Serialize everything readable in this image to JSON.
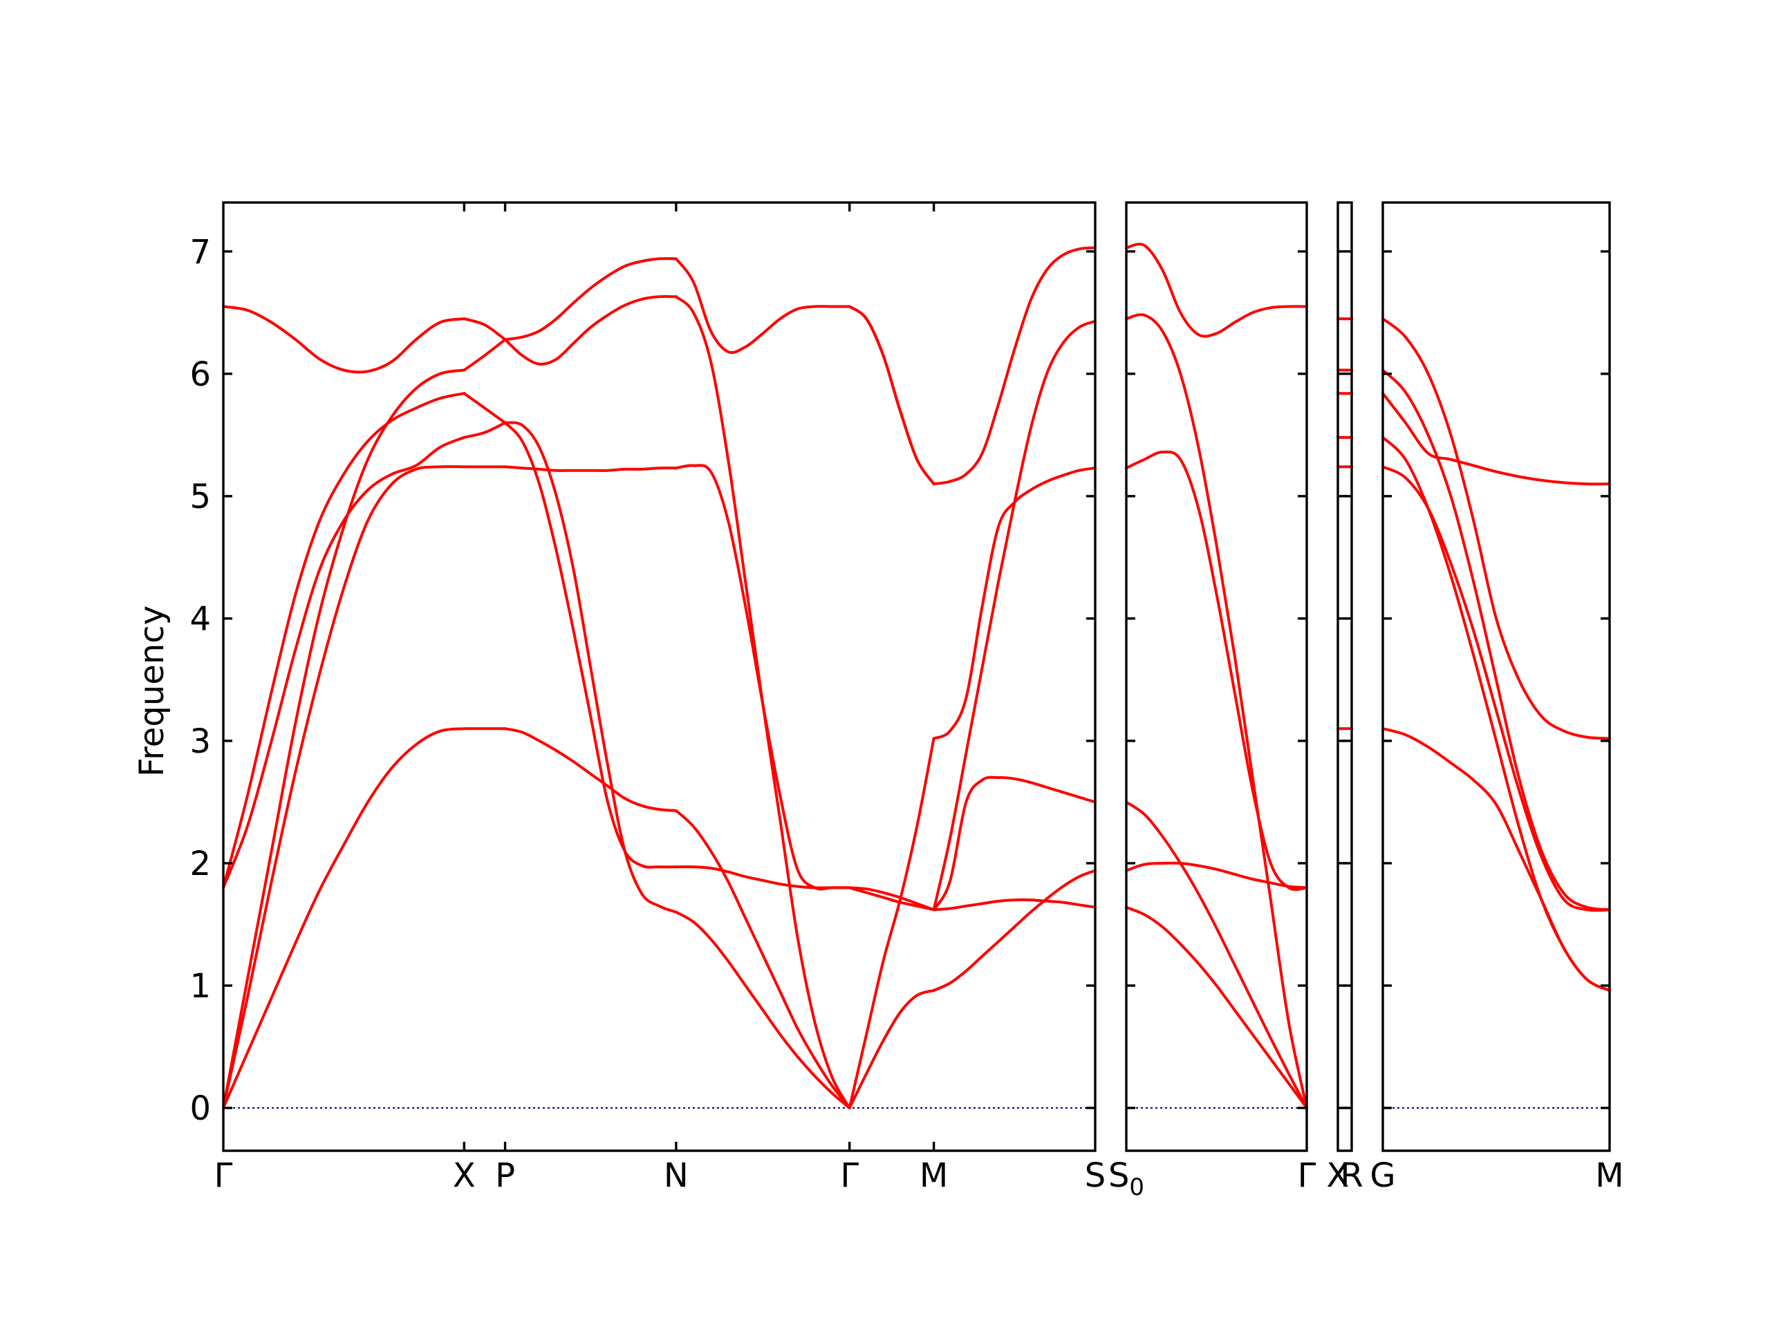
{
  "chart_data": {
    "type": "line",
    "title": "",
    "ylabel": "Frequency",
    "ylim": [
      -0.35,
      7.4
    ],
    "yticks": [
      "0",
      "1",
      "2",
      "3",
      "4",
      "5",
      "6",
      "7"
    ],
    "band_color": "#ff0000",
    "zero_line_color": "#00008b",
    "grid": false,
    "panels": [
      {
        "xticks": [
          "Γ",
          "X",
          "P",
          "N",
          "Γ",
          "M",
          "S"
        ],
        "segments": [
          {
            "from": "Γ",
            "to": "X",
            "x": [
              0,
              0.1,
              0.2,
              0.3,
              0.4,
              0.5,
              0.6,
              0.7,
              0.8,
              0.9,
              1.0
            ],
            "bands": [
              [
                0,
                0.45,
                0.9,
                1.35,
                1.78,
                2.15,
                2.5,
                2.78,
                2.97,
                3.08,
                3.1
              ],
              [
                0,
                0.9,
                1.85,
                2.75,
                3.55,
                4.25,
                4.8,
                5.1,
                5.22,
                5.24,
                5.24
              ],
              [
                1.8,
                2.3,
                3.0,
                3.75,
                4.4,
                4.8,
                5.05,
                5.18,
                5.25,
                5.4,
                5.48
              ],
              [
                1.8,
                2.55,
                3.4,
                4.2,
                4.8,
                5.18,
                5.45,
                5.62,
                5.72,
                5.8,
                5.84
              ],
              [
                0,
                1.05,
                2.1,
                3.15,
                4.05,
                4.75,
                5.3,
                5.65,
                5.88,
                6.0,
                6.03
              ],
              [
                6.55,
                6.52,
                6.42,
                6.28,
                6.12,
                6.03,
                6.02,
                6.1,
                6.28,
                6.42,
                6.45
              ]
            ]
          },
          {
            "from": "X",
            "to": "P",
            "x": [
              0,
              0.5,
              1.0
            ],
            "bands": [
              [
                3.1,
                3.1,
                3.1
              ],
              [
                5.24,
                5.24,
                5.24
              ],
              [
                5.48,
                5.52,
                5.6
              ],
              [
                5.84,
                5.72,
                5.6
              ],
              [
                6.03,
                6.15,
                6.28
              ],
              [
                6.45,
                6.4,
                6.28
              ]
            ]
          },
          {
            "from": "P",
            "to": "N",
            "x": [
              0,
              0.1,
              0.2,
              0.3,
              0.4,
              0.5,
              0.6,
              0.7,
              0.8,
              0.9,
              1.0
            ],
            "bands": [
              [
                3.1,
                3.07,
                3.0,
                2.92,
                2.83,
                2.73,
                2.63,
                2.53,
                2.47,
                2.44,
                2.43
              ],
              [
                5.6,
                5.58,
                5.4,
                5.0,
                4.4,
                3.6,
                2.8,
                2.1,
                1.75,
                1.65,
                1.6
              ],
              [
                5.6,
                5.45,
                5.1,
                4.55,
                3.9,
                3.2,
                2.5,
                2.1,
                1.98,
                1.97,
                1.97
              ],
              [
                5.24,
                5.23,
                5.22,
                5.21,
                5.21,
                5.21,
                5.21,
                5.22,
                5.22,
                5.23,
                5.23
              ],
              [
                6.28,
                6.15,
                6.08,
                6.12,
                6.25,
                6.38,
                6.48,
                6.56,
                6.61,
                6.63,
                6.63
              ],
              [
                6.28,
                6.3,
                6.35,
                6.45,
                6.58,
                6.7,
                6.8,
                6.88,
                6.92,
                6.94,
                6.94
              ]
            ]
          },
          {
            "from": "N",
            "to": "Γ",
            "x": [
              0,
              0.1,
              0.2,
              0.3,
              0.4,
              0.5,
              0.6,
              0.7,
              0.8,
              0.9,
              1.0
            ],
            "bands": [
              [
                1.6,
                1.52,
                1.38,
                1.2,
                1.0,
                0.8,
                0.6,
                0.42,
                0.26,
                0.12,
                0
              ],
              [
                2.43,
                2.3,
                2.1,
                1.85,
                1.55,
                1.25,
                0.95,
                0.65,
                0.4,
                0.18,
                0
              ],
              [
                1.97,
                1.97,
                1.96,
                1.93,
                1.89,
                1.86,
                1.83,
                1.81,
                1.8,
                1.8,
                1.8
              ],
              [
                5.23,
                5.25,
                5.2,
                4.8,
                4.1,
                3.3,
                2.55,
                1.95,
                1.8,
                1.8,
                1.8
              ],
              [
                6.63,
                6.5,
                6.1,
                5.3,
                4.3,
                3.3,
                2.35,
                1.4,
                0.7,
                0.25,
                0
              ],
              [
                6.94,
                6.75,
                6.35,
                6.18,
                6.22,
                6.33,
                6.45,
                6.53,
                6.55,
                6.55,
                6.55
              ]
            ]
          },
          {
            "from": "Γ",
            "to": "M",
            "x": [
              0,
              0.2,
              0.4,
              0.6,
              0.8,
              1.0
            ],
            "bands": [
              [
                0,
                0.28,
                0.55,
                0.78,
                0.92,
                0.96
              ],
              [
                0,
                0.6,
                1.2,
                1.7,
                2.3,
                3.02
              ],
              [
                1.8,
                1.79,
                1.76,
                1.72,
                1.67,
                1.62
              ],
              [
                1.8,
                1.76,
                1.72,
                1.68,
                1.65,
                1.62
              ],
              [
                6.55,
                6.45,
                6.15,
                5.7,
                5.3,
                5.1
              ],
              [
                6.55,
                6.45,
                6.15,
                5.7,
                5.3,
                5.1
              ]
            ]
          },
          {
            "from": "M",
            "to": "S",
            "x": [
              0,
              0.1,
              0.2,
              0.3,
              0.4,
              0.5,
              0.6,
              0.7,
              0.8,
              0.9,
              1.0
            ],
            "bands": [
              [
                0.96,
                1.02,
                1.12,
                1.24,
                1.36,
                1.48,
                1.6,
                1.71,
                1.81,
                1.89,
                1.94
              ],
              [
                1.62,
                1.85,
                2.5,
                2.68,
                2.7,
                2.69,
                2.66,
                2.62,
                2.58,
                2.54,
                2.5
              ],
              [
                1.62,
                1.63,
                1.65,
                1.67,
                1.69,
                1.7,
                1.7,
                1.69,
                1.68,
                1.66,
                1.64
              ],
              [
                3.02,
                3.08,
                3.35,
                4.1,
                4.75,
                4.95,
                5.05,
                5.12,
                5.17,
                5.21,
                5.23
              ],
              [
                5.1,
                5.12,
                5.18,
                5.35,
                5.75,
                6.2,
                6.6,
                6.85,
                6.97,
                7.02,
                7.03
              ],
              [
                1.62,
                2.2,
                2.9,
                3.6,
                4.3,
                4.95,
                5.55,
                6.0,
                6.25,
                6.38,
                6.43
              ]
            ]
          }
        ]
      },
      {
        "xticks": [
          "S_0",
          "Γ"
        ],
        "segments": [
          {
            "from": "S_0",
            "to": "Γ",
            "x": [
              0,
              0.1,
              0.2,
              0.3,
              0.4,
              0.5,
              0.6,
              0.7,
              0.8,
              0.9,
              1.0
            ],
            "bands": [
              [
                1.64,
                1.58,
                1.48,
                1.34,
                1.18,
                1.0,
                0.8,
                0.6,
                0.4,
                0.2,
                0
              ],
              [
                2.5,
                2.4,
                2.22,
                2.0,
                1.75,
                1.47,
                1.17,
                0.87,
                0.57,
                0.28,
                0
              ],
              [
                1.94,
                1.99,
                2.0,
                2.0,
                1.98,
                1.95,
                1.91,
                1.87,
                1.84,
                1.81,
                1.8
              ],
              [
                5.23,
                5.3,
                5.36,
                5.3,
                4.9,
                4.2,
                3.4,
                2.6,
                2.0,
                1.8,
                1.8
              ],
              [
                6.45,
                6.48,
                6.35,
                6.0,
                5.4,
                4.6,
                3.7,
                2.7,
                1.7,
                0.7,
                0
              ],
              [
                7.03,
                7.05,
                6.85,
                6.5,
                6.32,
                6.33,
                6.42,
                6.5,
                6.54,
                6.55,
                6.55
              ]
            ]
          }
        ]
      },
      {
        "xticks": [
          "X",
          "R"
        ],
        "segments": [
          {
            "from": "X",
            "to": "R",
            "x": [
              0,
              1.0
            ],
            "bands": [
              [
                3.1,
                3.1
              ],
              [
                5.24,
                5.24
              ],
              [
                5.48,
                5.48
              ],
              [
                5.84,
                5.84
              ],
              [
                6.03,
                6.03
              ],
              [
                6.45,
                6.45
              ]
            ]
          }
        ]
      },
      {
        "xticks": [
          "G",
          "M"
        ],
        "segments": [
          {
            "from": "G",
            "to": "M",
            "x": [
              0,
              0.1,
              0.2,
              0.3,
              0.4,
              0.5,
              0.6,
              0.7,
              0.8,
              0.9,
              1.0
            ],
            "bands": [
              [
                3.1,
                3.05,
                2.95,
                2.82,
                2.68,
                2.48,
                2.1,
                1.7,
                1.3,
                1.05,
                0.96
              ],
              [
                5.24,
                5.15,
                4.9,
                4.45,
                3.9,
                3.25,
                2.6,
                2.05,
                1.7,
                1.62,
                1.62
              ],
              [
                5.48,
                5.3,
                4.9,
                4.35,
                3.7,
                3.0,
                2.3,
                1.7,
                1.3,
                1.05,
                0.96
              ],
              [
                5.84,
                5.6,
                5.35,
                5.3,
                5.25,
                5.2,
                5.16,
                5.13,
                5.11,
                5.1,
                5.1
              ],
              [
                6.03,
                5.85,
                5.5,
                5.0,
                4.3,
                3.5,
                2.7,
                2.1,
                1.75,
                1.64,
                1.62
              ],
              [
                6.45,
                6.3,
                6.0,
                5.5,
                4.8,
                4.0,
                3.5,
                3.2,
                3.08,
                3.03,
                3.02
              ]
            ]
          }
        ]
      }
    ]
  }
}
